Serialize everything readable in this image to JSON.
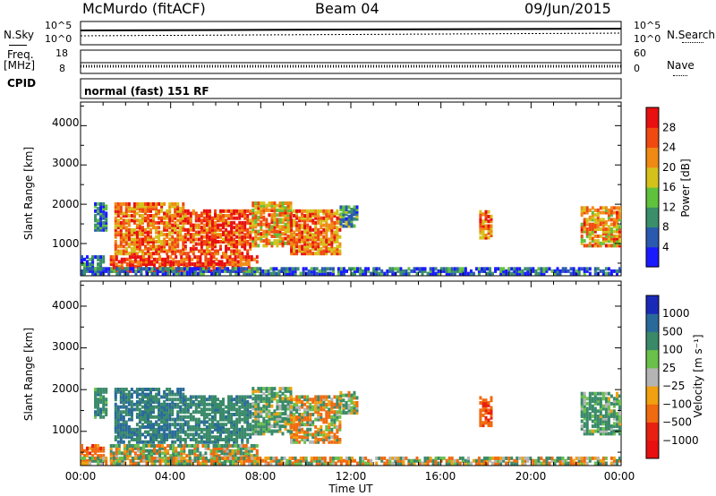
{
  "header": {
    "station": "McMurdo (fitACF)",
    "beam": "Beam 04",
    "date": "09/Jun/2015"
  },
  "left_labels": {
    "nsky": "N.Sky",
    "freq": "Freq.",
    "freq_unit": "[MHz]",
    "cpid": "CPID"
  },
  "right_labels": {
    "nsearch": "N.Search",
    "nave": "Nave"
  },
  "strip_ticks": {
    "noise_left": [
      "10^5",
      "10^0"
    ],
    "noise_right": [
      "10^5",
      "10^0"
    ],
    "freq_left": [
      "18",
      "8"
    ],
    "nave_right": [
      "60",
      "0"
    ]
  },
  "cpid_text": "normal (fast) 151 RF",
  "x_axis": {
    "title": "Time UT",
    "ticks": [
      "00:00",
      "04:00",
      "08:00",
      "12:00",
      "16:00",
      "20:00",
      "00:00"
    ]
  },
  "power_panel": {
    "ylabel": "Slant Range [km]",
    "yticks": [
      "1000",
      "2000",
      "3000",
      "4000"
    ],
    "cbar_label": "Power [dB]",
    "cbar_ticks": [
      "4",
      "8",
      "12",
      "16",
      "20",
      "24",
      "28"
    ],
    "cbar_colors": [
      "#1a1aff",
      "#2a5ab0",
      "#3a8f6a",
      "#5fc23c",
      "#d4c21a",
      "#f08a14",
      "#f04a10",
      "#e81010"
    ]
  },
  "velocity_panel": {
    "ylabel": "Slant Range [km]",
    "yticks": [
      "1000",
      "2000",
      "3000",
      "4000"
    ],
    "cbar_label": "Velocity [m s⁻¹]",
    "cbar_ticks": [
      "1000",
      "500",
      "100",
      "25",
      "−25",
      "−100",
      "−500",
      "−1000"
    ],
    "cbar_colors": [
      "#1a2ab8",
      "#2a6a9a",
      "#3a8a6a",
      "#6ac04a",
      "#b4b4b4",
      "#f0a010",
      "#f06a10",
      "#e82010",
      "#e81010"
    ]
  },
  "chart_data": {
    "type": "heatmap",
    "x_range_hours": [
      0,
      24
    ],
    "y_range_km": [
      180,
      4600
    ],
    "x_tick_labels": [
      "00:00",
      "04:00",
      "08:00",
      "12:00",
      "16:00",
      "20:00",
      "00:00"
    ],
    "power_scale_db": [
      0,
      30
    ],
    "velocity_scale_ms": [
      -1000,
      1000
    ],
    "echo_regions": [
      {
        "t_start": 0.6,
        "t_end": 1.1,
        "r_min": 1300,
        "r_max": 2000,
        "power": 7,
        "velocity": 300
      },
      {
        "t_start": 1.5,
        "t_end": 4.6,
        "r_min": 700,
        "r_max": 2000,
        "power": 22,
        "velocity": 500
      },
      {
        "t_start": 4.6,
        "t_end": 7.6,
        "r_min": 700,
        "r_max": 1800,
        "power": 25,
        "velocity": 350
      },
      {
        "t_start": 7.6,
        "t_end": 9.3,
        "r_min": 900,
        "r_max": 2000,
        "power": 20,
        "velocity": 150
      },
      {
        "t_start": 9.3,
        "t_end": 11.5,
        "r_min": 700,
        "r_max": 1800,
        "power": 22,
        "velocity": -50
      },
      {
        "t_start": 11.5,
        "t_end": 12.3,
        "r_min": 1400,
        "r_max": 1900,
        "power": 10,
        "velocity": 80
      },
      {
        "t_start": 1.3,
        "t_end": 7.8,
        "r_min": 250,
        "r_max": 650,
        "power": 26,
        "velocity": 20
      },
      {
        "t_start": 0.0,
        "t_end": 1.0,
        "r_min": 250,
        "r_max": 650,
        "power": 6,
        "velocity": -300
      },
      {
        "t_start": 17.7,
        "t_end": 18.3,
        "r_min": 1100,
        "r_max": 1800,
        "power": 22,
        "velocity": -400
      },
      {
        "t_start": 22.2,
        "t_end": 24.0,
        "r_min": 900,
        "r_max": 1900,
        "power": 20,
        "velocity": 200
      },
      {
        "t_start": 0.0,
        "t_end": 24.0,
        "r_min": 190,
        "r_max": 330,
        "power": 6,
        "velocity": 0
      }
    ]
  }
}
